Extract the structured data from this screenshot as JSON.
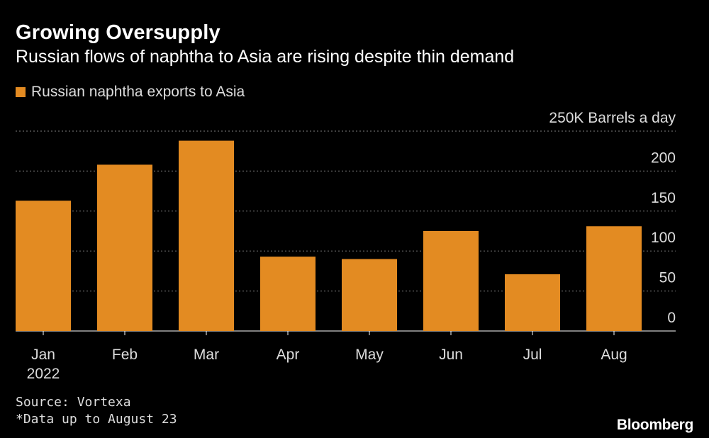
{
  "colors": {
    "background": "#000000",
    "bar": "#e38b22",
    "grid": "#666666",
    "text": "#ffffff",
    "muted": "#dddddd"
  },
  "chart_data": {
    "type": "bar",
    "title": "Growing Oversupply",
    "subtitle": "Russian flows of naphtha to Asia are rising despite thin demand",
    "legend": [
      "Russian naphtha exports to Asia"
    ],
    "series": [
      {
        "name": "Russian naphtha exports to Asia",
        "values": [
          163,
          208,
          238,
          93,
          90,
          125,
          71,
          131
        ]
      }
    ],
    "categories": [
      "Jan",
      "Feb",
      "Mar",
      "Apr",
      "May",
      "Jun",
      "Jul",
      "Aug"
    ],
    "x_sublabels": [
      "2022",
      "",
      "",
      "",
      "",
      "",
      "",
      ""
    ],
    "yticks": [
      "0",
      "50",
      "100",
      "150",
      "200",
      "250K Barrels a day"
    ],
    "ytick_values": [
      0,
      50,
      100,
      150,
      200,
      250
    ],
    "ylim": [
      0,
      250
    ],
    "grid": true,
    "legend_position": "top-left",
    "yaxis_position": "right"
  },
  "footer": {
    "source": "Source: Vortexa",
    "note": "*Data up to August 23",
    "brand": "Bloomberg"
  }
}
